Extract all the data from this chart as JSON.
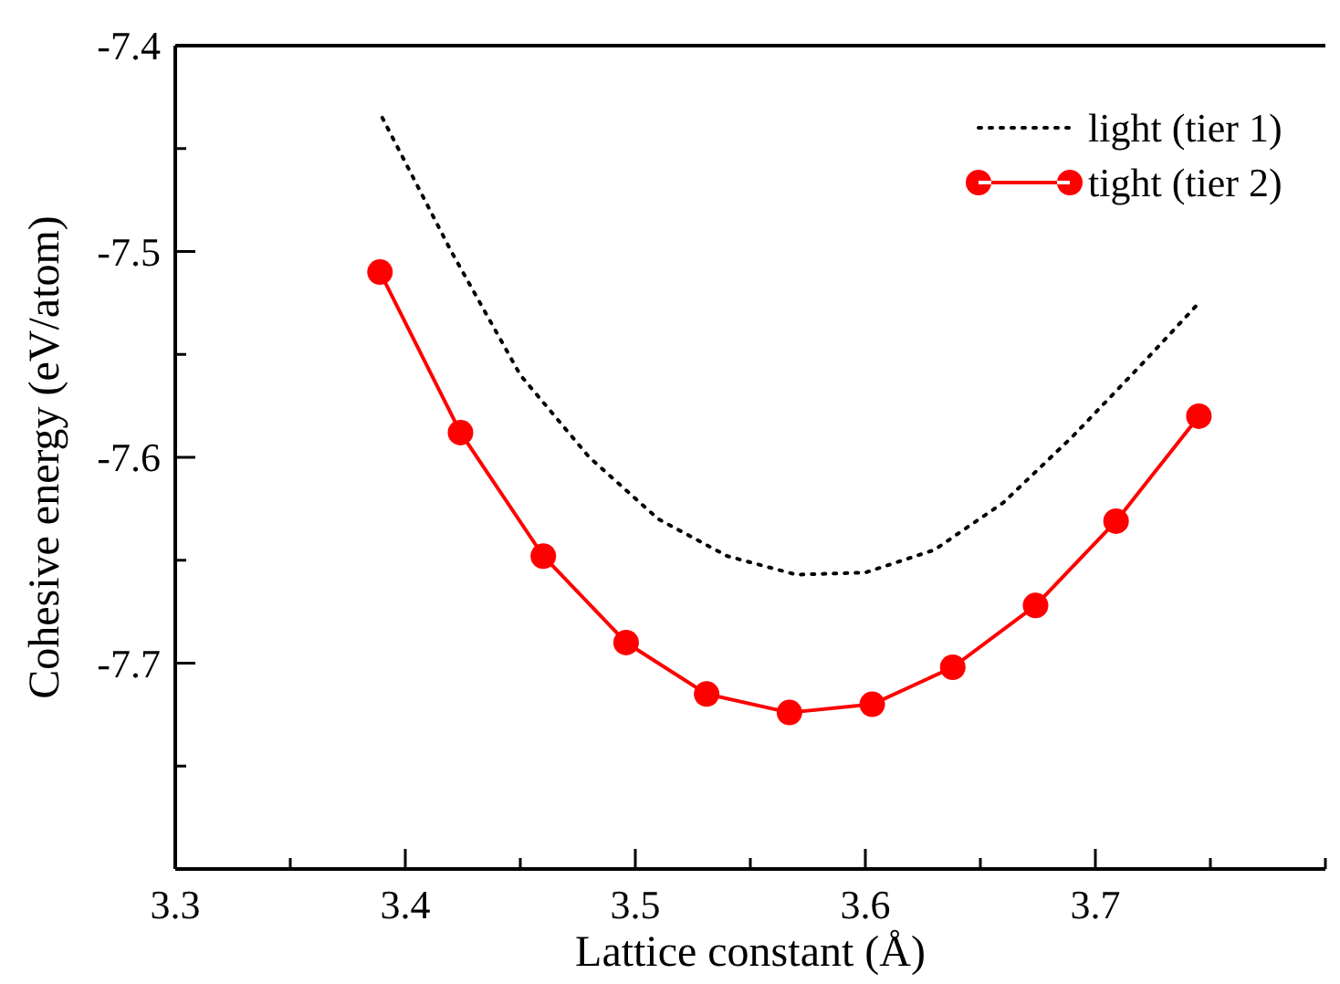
{
  "chart_data": {
    "type": "line",
    "xlabel": "Lattice constant (Å)",
    "ylabel": "Cohesive energy (eV/atom)",
    "xlim": [
      3.3,
      3.8
    ],
    "ylim": [
      -7.8,
      -7.4
    ],
    "xticks": [
      3.3,
      {
        "value": 3.35,
        "label": null
      },
      3.4,
      {
        "value": 3.45,
        "label": null
      },
      3.5,
      {
        "value": 3.55,
        "label": null
      },
      3.6,
      {
        "value": 3.65,
        "label": null
      },
      3.7,
      {
        "value": 3.75,
        "label": null
      },
      {
        "value": 3.8,
        "label": null
      }
    ],
    "yticks": [
      -7.4,
      {
        "value": -7.45,
        "label": null
      },
      -7.5,
      {
        "value": -7.55,
        "label": null
      },
      -7.6,
      {
        "value": -7.65,
        "label": null
      },
      -7.7,
      {
        "value": -7.75,
        "label": null
      },
      {
        "value": -7.8,
        "label": null
      }
    ],
    "grid": false,
    "legend": "top right",
    "series": [
      {
        "name": "light (tier 1)",
        "color": "#000000",
        "line_style": "dotted",
        "marker": "none",
        "x": [
          3.39,
          3.42,
          3.45,
          3.48,
          3.51,
          3.54,
          3.57,
          3.6,
          3.63,
          3.66,
          3.69,
          3.72,
          3.745
        ],
        "values": [
          -7.435,
          -7.5,
          -7.56,
          -7.6,
          -7.63,
          -7.648,
          -7.657,
          -7.656,
          -7.645,
          -7.622,
          -7.59,
          -7.555,
          -7.525
        ]
      },
      {
        "name": "tight (tier 2)",
        "color": "#ff0000",
        "line_style": "solid",
        "marker": "circle",
        "x": [
          3.389,
          3.424,
          3.46,
          3.496,
          3.531,
          3.567,
          3.603,
          3.638,
          3.674,
          3.709,
          3.745
        ],
        "values": [
          -7.51,
          -7.588,
          -7.648,
          -7.69,
          -7.715,
          -7.724,
          -7.72,
          -7.702,
          -7.672,
          -7.631,
          -7.58
        ]
      }
    ]
  }
}
